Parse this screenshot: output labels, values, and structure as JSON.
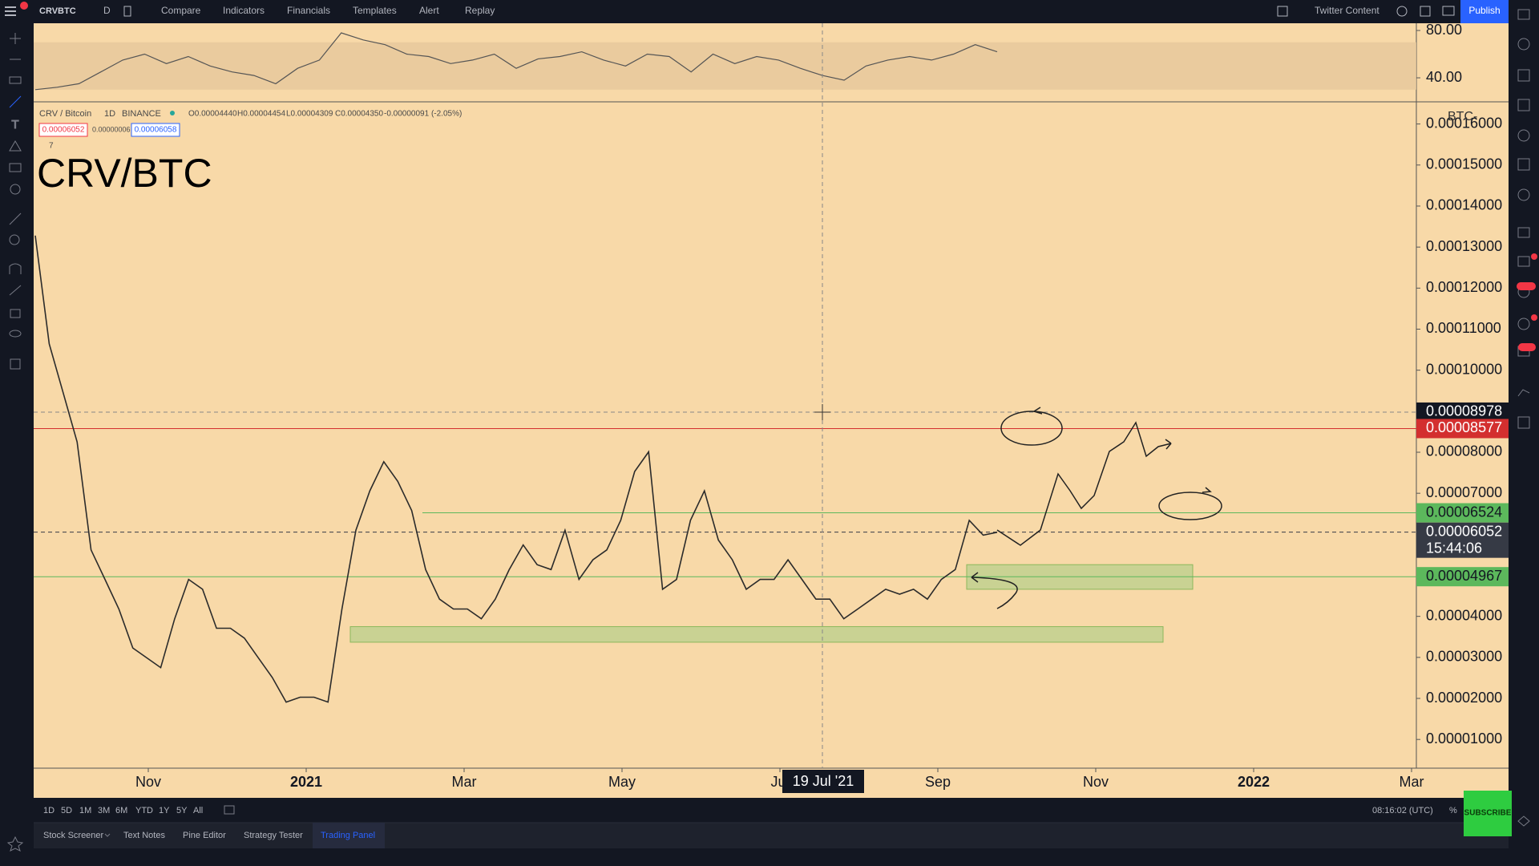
{
  "toolbar": {
    "symbol": "CRVBTC",
    "interval": "D",
    "items": [
      "Compare",
      "Indicators",
      "Financials",
      "Templates",
      "Alert",
      "Replay"
    ],
    "layout": "Twitter Content",
    "publish": "Publish"
  },
  "legend": {
    "pair": "CRV / Bitcoin",
    "interval": "1D",
    "exchange": "BINANCE",
    "open": "O0.00004440",
    "high": "H0.00004454",
    "low": "L0.00004309",
    "close": "C0.00004350",
    "change": "-0.00000091 (-2.05%)",
    "bid": "0.00006052",
    "spread": "0.00000006",
    "ask": "0.00006058",
    "collapsed": "7"
  },
  "chart_data": [
    {
      "type": "line",
      "ylim": [
        19.7,
        86.1
      ],
      "yticks": [
        {
          "value": 80,
          "label": "80.00"
        },
        {
          "value": 40,
          "label": "40.00"
        }
      ],
      "band": [
        30,
        70
      ],
      "color": "#555555",
      "values": [
        30,
        32,
        35,
        45,
        55,
        60,
        52,
        58,
        50,
        45,
        42,
        35,
        48,
        55,
        78,
        72,
        68,
        60,
        58,
        52,
        55,
        60,
        48,
        56,
        58,
        62,
        55,
        50,
        60,
        58,
        45,
        60,
        52,
        58,
        55,
        48,
        42,
        38,
        50,
        55,
        58,
        55,
        60,
        68,
        62
      ]
    },
    {
      "type": "line",
      "title": "CRV/BTC",
      "axis_unit": "BTC-",
      "color": "#2b2b2b",
      "ylim": [
        3e-06,
        0.0001654
      ],
      "yticks": [
        {
          "value": 1e-05,
          "label": "0.00001000"
        },
        {
          "value": 2e-05,
          "label": "0.00002000"
        },
        {
          "value": 3e-05,
          "label": "0.00003000"
        },
        {
          "value": 4e-05,
          "label": "0.00004000"
        },
        {
          "value": 5e-05,
          "label": "0.00005000"
        },
        {
          "value": 6e-05,
          "label": "0.00006000"
        },
        {
          "value": 7e-05,
          "label": "0.00007000"
        },
        {
          "value": 8e-05,
          "label": "0.00008000"
        },
        {
          "value": 9e-05,
          "label": "0.00009000"
        },
        {
          "value": 0.0001,
          "label": "0.00010000"
        },
        {
          "value": 0.00011,
          "label": "0.00011000"
        },
        {
          "value": 0.00012,
          "label": "0.00012000"
        },
        {
          "value": 0.00013,
          "label": "0.00013000"
        },
        {
          "value": 0.00014,
          "label": "0.00014000"
        },
        {
          "value": 0.00015,
          "label": "0.00015000"
        },
        {
          "value": 0.00016,
          "label": "0.00016000"
        }
      ],
      "xticks": [
        "Nov",
        "2021",
        "Mar",
        "May",
        "Jul",
        "Sep",
        "Nov",
        "2022",
        "Mar"
      ],
      "crosshair_label": "19 Jul '21",
      "values": [
        0.0001328,
        0.0001064,
        9.45e-05,
        8.25e-05,
        5.62e-05,
        4.9e-05,
        4.18e-05,
        3.23e-05,
        2.99e-05,
        2.75e-05,
        3.94e-05,
        4.9e-05,
        4.66e-05,
        3.71e-05,
        3.71e-05,
        3.47e-05,
        2.99e-05,
        2.51e-05,
        1.91e-05,
        2.03e-05,
        2.03e-05,
        1.91e-05,
        4.18e-05,
        6.1e-05,
        7.06e-05,
        7.77e-05,
        7.29e-05,
        6.58e-05,
        5.14e-05,
        4.42e-05,
        4.18e-05,
        4.18e-05,
        3.94e-05,
        4.42e-05,
        5.14e-05,
        5.74e-05,
        5.26e-05,
        5.14e-05,
        6.1e-05,
        4.9e-05,
        5.38e-05,
        5.62e-05,
        6.34e-05,
        7.53e-05,
        8.01e-05,
        4.66e-05,
        4.9e-05,
        6.34e-05,
        7.06e-05,
        5.86e-05,
        5.38e-05,
        4.66e-05,
        4.9e-05,
        4.9e-05,
        5.38e-05,
        4.9e-05,
        4.42e-05,
        4.42e-05,
        3.94e-05,
        4.18e-05,
        4.42e-05,
        4.66e-05,
        4.54e-05,
        4.66e-05,
        4.42e-05,
        4.9e-05,
        5.14e-05,
        6.34e-05,
        5.98e-05,
        6.05e-05
      ],
      "zones": [
        {
          "from": 3.37e-05,
          "to": 3.75e-05
        },
        {
          "from": 4.66e-05,
          "to": 5.26e-05
        }
      ],
      "price_labels": [
        {
          "value": 8.978e-05,
          "label": "0.00008978",
          "color": "#131722",
          "line": "dashed"
        },
        {
          "value": 8.577e-05,
          "label": "0.00008577",
          "color": "#d32f2f",
          "line": "solid"
        },
        {
          "value": 6.524e-05,
          "label": "0.00006524",
          "color": "#5cb85c",
          "line": "solid"
        },
        {
          "value": 6.052e-05,
          "label": "0.00006052",
          "countdown": "15:44:06",
          "color": "#363a45",
          "line": "dashed"
        },
        {
          "value": 4.967e-05,
          "label": "0.00004967",
          "color": "#5cb85c",
          "line": "solid"
        }
      ]
    }
  ],
  "range_bar": {
    "ranges": [
      "1D",
      "5D",
      "1M",
      "3M",
      "6M",
      "YTD",
      "1Y",
      "5Y",
      "All"
    ],
    "clock": "08:16:02 (UTC)",
    "percent": "%"
  },
  "tabs": [
    "Stock Screener",
    "Text Notes",
    "Pine Editor",
    "Strategy Tester",
    "Trading Panel"
  ],
  "subscribe": "SUBSCRIBE"
}
